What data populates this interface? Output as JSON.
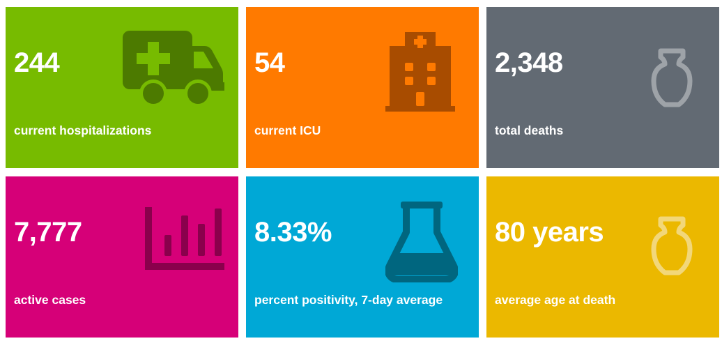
{
  "tiles": [
    {
      "value": "244",
      "label": "current hospitalizations",
      "color": "#77bb00",
      "icon": "ambulance-icon"
    },
    {
      "value": "54",
      "label": "current ICU",
      "color": "#ff7a00",
      "icon": "hospital-building-icon"
    },
    {
      "value": "2,348",
      "label": "total deaths",
      "color": "#626a73",
      "icon": "urn-icon"
    },
    {
      "value": "7,777",
      "label": "active cases",
      "color": "#d60078",
      "icon": "bar-chart-icon"
    },
    {
      "value": "8.33%",
      "label": "percent positivity, 7-day average",
      "color": "#00a8d6",
      "icon": "flask-icon"
    },
    {
      "value": "80 years",
      "label": "average age at death",
      "color": "#ebb800",
      "icon": "urn-icon"
    }
  ]
}
